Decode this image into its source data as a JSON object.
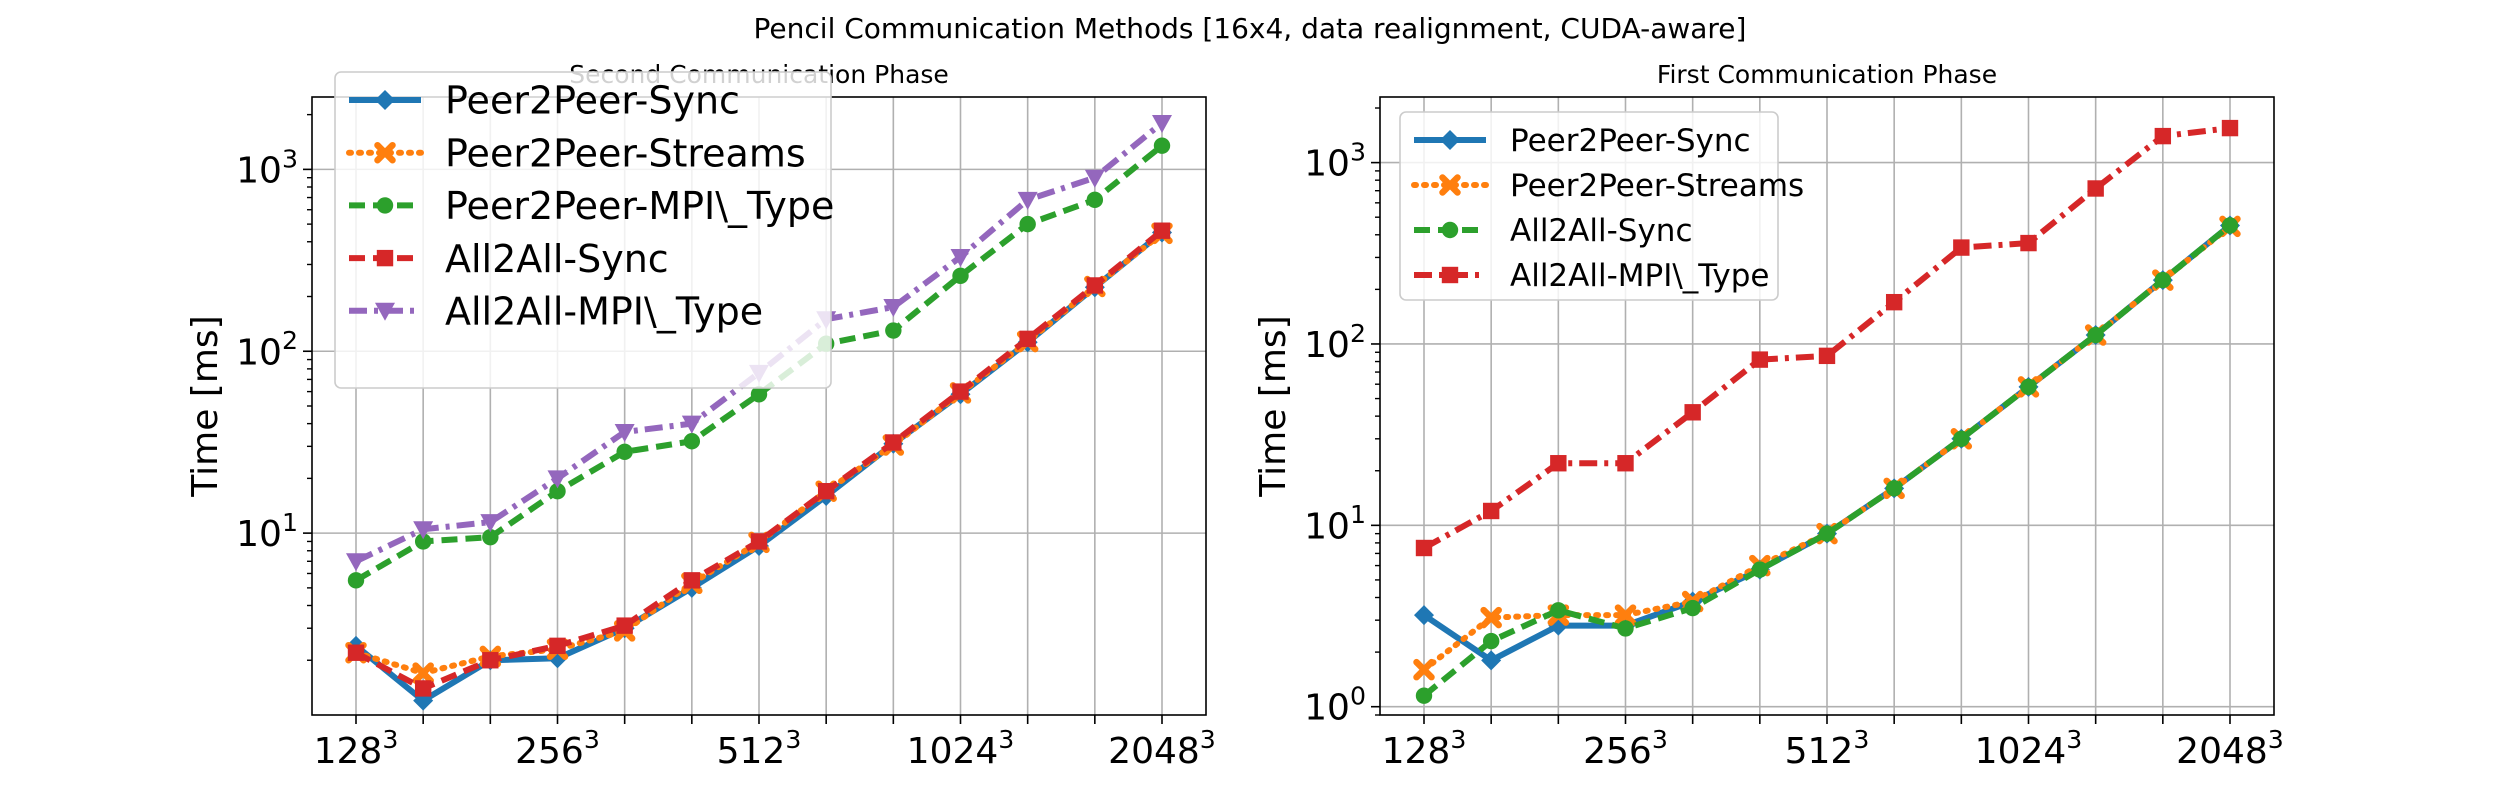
{
  "figure": {
    "suptitle": "Pencil Communication Methods [16x4, data realignment, CUDA-aware]"
  },
  "chart_data": [
    {
      "type": "line",
      "title": "Second Communication Phase",
      "xlabel": "",
      "ylabel": "Time [ms]",
      "yscale": "log",
      "ylim": [
        1,
        2500
      ],
      "x_ticks": [
        "128^3",
        "256^3",
        "512^3",
        "1024^3",
        "2048^3"
      ],
      "x_count": 13,
      "y_ticks": [
        "10^1",
        "10^2",
        "10^3"
      ],
      "grid": true,
      "legend_position": "upper-left",
      "series": [
        {
          "name": "Peer2Peer-Sync",
          "color": "#1f77b4",
          "marker": "diamond",
          "dash": "solid",
          "values": [
            2.4,
            1.2,
            2.0,
            2.05,
            3.0,
            5.0,
            8.5,
            16.0,
            31.0,
            58.0,
            112.0,
            225.0,
            450.0
          ]
        },
        {
          "name": "Peer2Peer-Streams",
          "color": "#ff7f0e",
          "marker": "x",
          "dash": "dotted",
          "values": [
            2.2,
            1.7,
            2.1,
            2.3,
            2.9,
            5.3,
            8.9,
            17.0,
            30.5,
            59.0,
            113.0,
            227.0,
            445.0
          ]
        },
        {
          "name": "Peer2Peer-MPI\\_Type",
          "color": "#2ca02c",
          "marker": "circle",
          "dash": "dashed",
          "values": [
            5.5,
            9.0,
            9.5,
            17.0,
            28.0,
            32.0,
            58.0,
            110.0,
            130.0,
            260.0,
            500.0,
            680.0,
            1350.0
          ]
        },
        {
          "name": "All2All-Sync",
          "color": "#d62728",
          "marker": "square",
          "dash": "dashed",
          "values": [
            2.2,
            1.4,
            2.0,
            2.4,
            3.1,
            5.5,
            9.0,
            17.0,
            31.5,
            60.0,
            117.0,
            230.0,
            460.0
          ]
        },
        {
          "name": "All2All-MPI\\_Type",
          "color": "#9467bd",
          "marker": "triangle-down",
          "dash": "dashdot",
          "values": [
            7.0,
            10.5,
            11.5,
            20.0,
            36.0,
            40.0,
            76.0,
            150.0,
            175.0,
            330.0,
            680.0,
            900.0,
            1800.0
          ]
        }
      ]
    },
    {
      "type": "line",
      "title": "First Communication Phase",
      "xlabel": "",
      "ylabel": "Time [ms]",
      "yscale": "log",
      "ylim": [
        0.9,
        2300
      ],
      "x_ticks": [
        "128^3",
        "256^3",
        "512^3",
        "1024^3",
        "2048^3"
      ],
      "x_count": 13,
      "y_ticks": [
        "10^0",
        "10^1",
        "10^2",
        "10^3"
      ],
      "grid": true,
      "legend_position": "upper-left",
      "series": [
        {
          "name": "Peer2Peer-Sync",
          "color": "#1f77b4",
          "marker": "diamond",
          "dash": "solid",
          "values": [
            3.2,
            1.8,
            2.8,
            2.8,
            3.8,
            5.7,
            9.0,
            16.0,
            30.0,
            58.0,
            112.0,
            225.0,
            450.0
          ]
        },
        {
          "name": "Peer2Peer-Streams",
          "color": "#ff7f0e",
          "marker": "x",
          "dash": "dotted",
          "values": [
            1.6,
            3.1,
            3.2,
            3.2,
            3.8,
            6.0,
            9.0,
            16.0,
            30.0,
            58.0,
            112.0,
            225.0,
            445.0
          ]
        },
        {
          "name": "All2All-Sync",
          "color": "#2ca02c",
          "marker": "circle",
          "dash": "dashed",
          "values": [
            1.15,
            2.3,
            3.4,
            2.7,
            3.5,
            5.7,
            9.0,
            16.0,
            30.0,
            58.0,
            112.0,
            225.0,
            450.0
          ]
        },
        {
          "name": "All2All-MPI\\_Type",
          "color": "#d62728",
          "marker": "square",
          "dash": "dashdot",
          "values": [
            7.5,
            12.0,
            22.0,
            22.0,
            42.0,
            82.0,
            86.0,
            170.0,
            340.0,
            360.0,
            720.0,
            1400.0,
            1550.0
          ]
        }
      ]
    }
  ]
}
